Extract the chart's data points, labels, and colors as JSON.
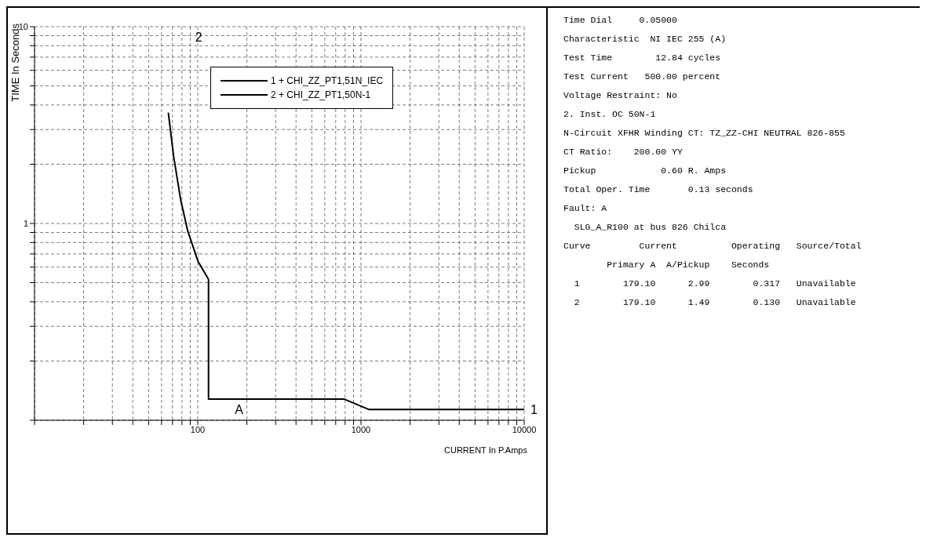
{
  "chart_data": {
    "type": "line",
    "xlabel": "CURRENT In P.Amps",
    "ylabel": "TIME In Seconds",
    "log": "xy",
    "grid": true,
    "legend": "top right",
    "xlim": [
      10,
      10000
    ],
    "xticks": [
      {
        "value": 10,
        "label": null
      },
      {
        "value": 20,
        "label": null
      },
      {
        "value": 30,
        "label": null
      },
      {
        "value": 40,
        "label": null
      },
      {
        "value": 50,
        "label": null
      },
      {
        "value": 60,
        "label": null
      },
      {
        "value": 70,
        "label": null
      },
      {
        "value": 80,
        "label": null
      },
      {
        "value": 90,
        "label": null
      },
      100,
      {
        "value": 200,
        "label": null
      },
      {
        "value": 300,
        "label": null
      },
      {
        "value": 400,
        "label": null
      },
      {
        "value": 500,
        "label": null
      },
      {
        "value": 600,
        "label": null
      },
      {
        "value": 700,
        "label": null
      },
      {
        "value": 800,
        "label": null
      },
      {
        "value": 900,
        "label": null
      },
      1000,
      {
        "value": 2000,
        "label": null
      },
      {
        "value": 3000,
        "label": null
      },
      {
        "value": 4000,
        "label": null
      },
      {
        "value": 5000,
        "label": null
      },
      {
        "value": 6000,
        "label": null
      },
      {
        "value": 7000,
        "label": null
      },
      {
        "value": 8000,
        "label": null
      },
      {
        "value": 9000,
        "label": null
      },
      10000
    ],
    "ylim": [
      0.1,
      10
    ],
    "yticks": [
      {
        "value": 0.1,
        "label": null
      },
      {
        "value": 0.2,
        "label": null
      },
      {
        "value": 0.3,
        "label": null
      },
      {
        "value": 0.4,
        "label": null
      },
      {
        "value": 0.5,
        "label": null
      },
      {
        "value": 0.6,
        "label": null
      },
      {
        "value": 0.7,
        "label": null
      },
      {
        "value": 0.8,
        "label": null
      },
      {
        "value": 0.9,
        "label": null
      },
      1,
      {
        "value": 2,
        "label": null
      },
      {
        "value": 3,
        "label": null
      },
      {
        "value": 4,
        "label": null
      },
      {
        "value": 5,
        "label": null
      },
      {
        "value": 6,
        "label": null
      },
      {
        "value": 7,
        "label": null
      },
      {
        "value": 8,
        "label": null
      },
      {
        "value": 9,
        "label": null
      },
      10
    ],
    "series": [
      {
        "name": "1 + CHI_ZZ_PT1,51N_IEC",
        "color": "#000000",
        "x": [
          66,
          71.3,
          78.7,
          86.7,
          100.5,
          116.4
        ],
        "values": [
          3.66,
          2.17,
          1.31,
          0.92,
          0.64,
          0.52
        ]
      },
      {
        "name": "2 + CHI_ZZ_PT1,50N-1",
        "color": "#000000",
        "x": [
          116.4,
          116.4,
          791,
          1114,
          10000
        ],
        "values": [
          0.52,
          0.128,
          0.128,
          0.1135,
          0.1135
        ]
      }
    ],
    "annotations": [
      "2",
      {
        "text": "1",
        "x": 10000,
        "y": 0.1135
      },
      {
        "text": "A",
        "x": 179.1,
        "y": 0.128
      },
      "Time Dial     0.05000",
      "Characteristic  NI IEC 255 (A)",
      "Test Time        12.84 cycles",
      "Test Current   500.00 percent",
      "Voltage Restraint: No",
      "2. Inst. OC 50N-1",
      "N-Circuit XFHR Winding CT: TZ_ZZ-CHI NEUTRAL 826-855",
      "CT Ratio:    200.00 YY",
      "Pickup            0.60 R. Amps",
      "Total Oper. Time       0.13 seconds",
      "Fault: A",
      "  SLG_A_R100 at bus 826 Chilca",
      "Curve         Current          Operating   Source/Total",
      "        Primary A  A/Pickup    Seconds",
      "  1        179.10      2.99        0.317   Unavailable",
      "  2        179.10      1.49        0.130   Unavailable"
    ]
  }
}
